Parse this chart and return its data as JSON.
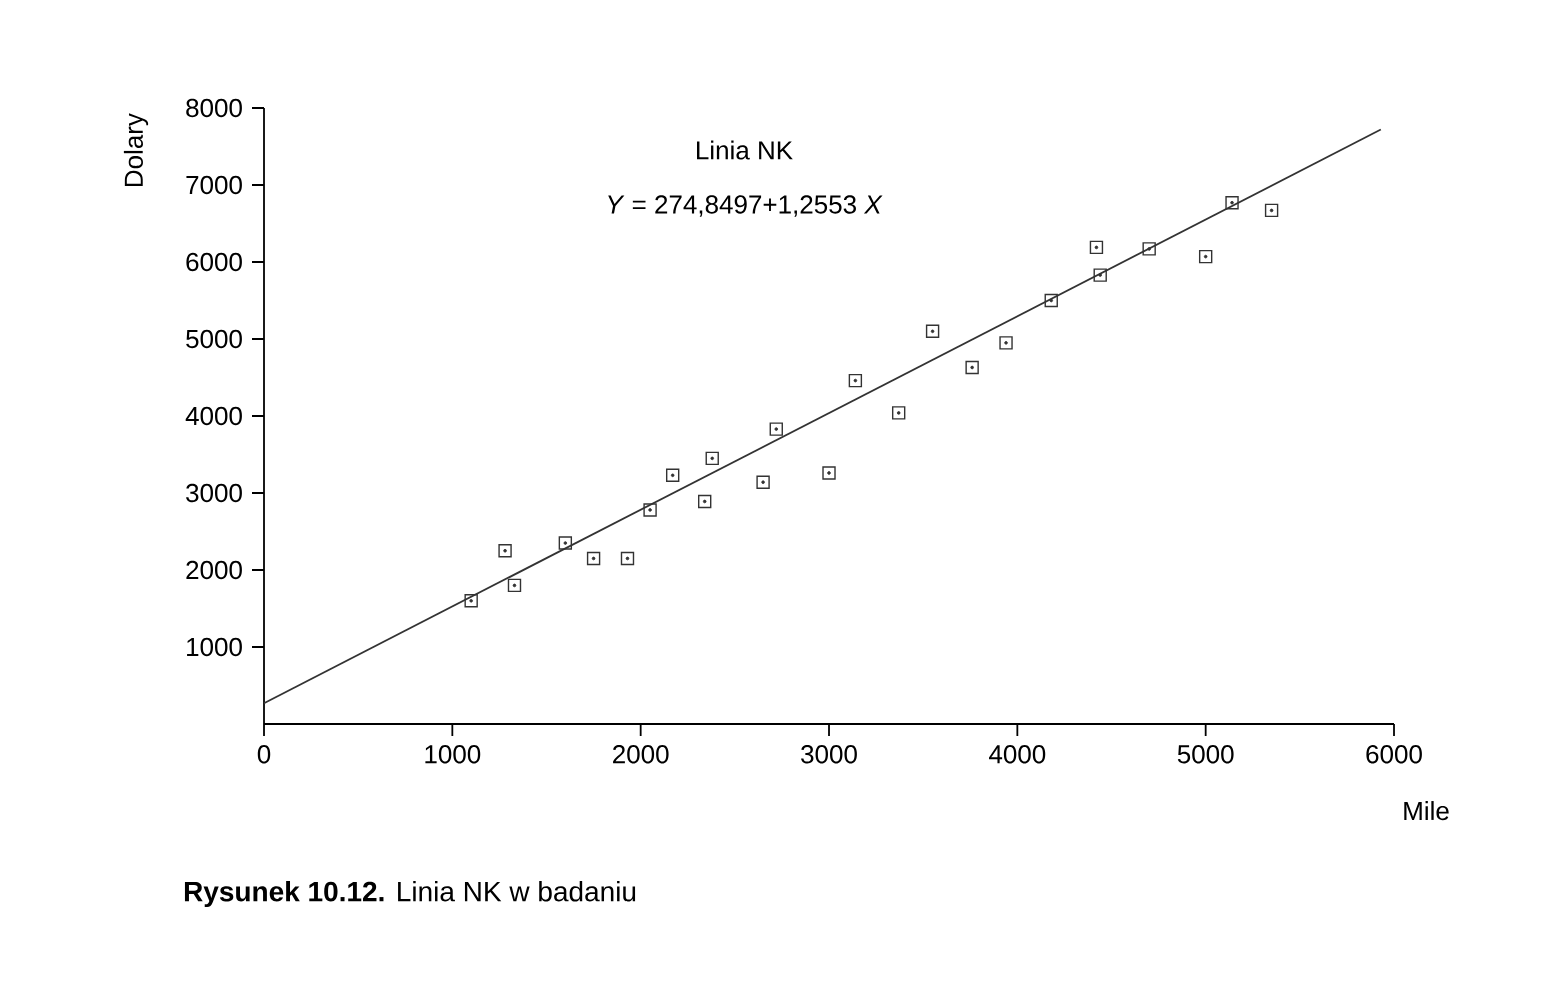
{
  "chart_data": {
    "type": "scatter",
    "xlabel": "Mile",
    "ylabel": "Dolary",
    "xlim": [
      0,
      6000
    ],
    "ylim": [
      0,
      8000
    ],
    "xticks": [
      0,
      1000,
      2000,
      3000,
      4000,
      5000,
      6000
    ],
    "yticks": [
      1000,
      2000,
      3000,
      4000,
      5000,
      6000,
      7000,
      8000
    ],
    "annotations": [
      "Linia NK",
      "*Y* = 274,8497+1,2553 *X*",
      "**Rysunek 10.12.** Linia NK w badaniu"
    ],
    "series": [
      {
        "marker": "square",
        "color": "#333333",
        "x": [
          1100,
          1280,
          1330,
          1600,
          1750,
          1930,
          2050,
          2170,
          2340,
          2380,
          2650,
          2720,
          3000,
          3140,
          3370,
          3550,
          3760,
          3940,
          4180,
          4420,
          4440,
          4700,
          5000,
          5140,
          5350
        ],
        "values": [
          1600,
          2250,
          1800,
          2350,
          2150,
          2150,
          2780,
          3230,
          2890,
          3450,
          3140,
          3830,
          3260,
          4460,
          4040,
          5100,
          4630,
          4950,
          5500,
          6190,
          5830,
          6170,
          6070,
          6770,
          6670
        ]
      },
      {
        "type": "line",
        "color": "#333333",
        "x": [
          0,
          5930
        ],
        "values": [
          270,
          7720
        ]
      }
    ]
  }
}
